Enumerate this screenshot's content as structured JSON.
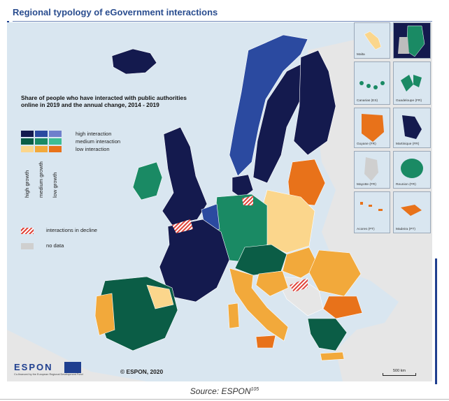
{
  "title": "Regional typology of eGovernment interactions",
  "legend": {
    "title": "Share of people who have interacted with public authorities online in 2019 and the annual change, 2014 - 2019",
    "rows": [
      "high interaction",
      "medium interaction",
      "low interaction"
    ],
    "columns": [
      "high growth",
      "medium growth",
      "low growth"
    ],
    "matrix_colors": [
      [
        "#141a4e",
        "#2b4aa0",
        "#6f7fcc"
      ],
      [
        "#0b5d46",
        "#1a8a64",
        "#3dbd94"
      ],
      [
        "#fbd68c",
        "#f2a93b",
        "#e8721a"
      ]
    ],
    "decline_label": "interactions in decline",
    "nodata_label": "no data"
  },
  "insets": [
    {
      "label": "Malta"
    },
    {
      "label": ""
    },
    {
      "label": "Canarias (ES)"
    },
    {
      "label": "Guadeloupe (FR)"
    },
    {
      "label": "Guyane (FR)"
    },
    {
      "label": "Martinique (FR)"
    },
    {
      "label": "Mayotte (FR)"
    },
    {
      "label": "Reunion (FR)"
    },
    {
      "label": "Acores (PT)"
    },
    {
      "label": "Madeira (PT)"
    }
  ],
  "logo": {
    "text": "ESPON",
    "subtext": "Co-financed by the European Regional Development Fund"
  },
  "copyright": "© ESPON, 2020",
  "scale_label": "500 km",
  "source": {
    "text": "Source: ESPON",
    "note": "105"
  },
  "colors": {
    "title": "#2a4d8f",
    "sea": "#d9e6f0",
    "land_outside": "#e6e6e6",
    "border": "#ffffff"
  }
}
